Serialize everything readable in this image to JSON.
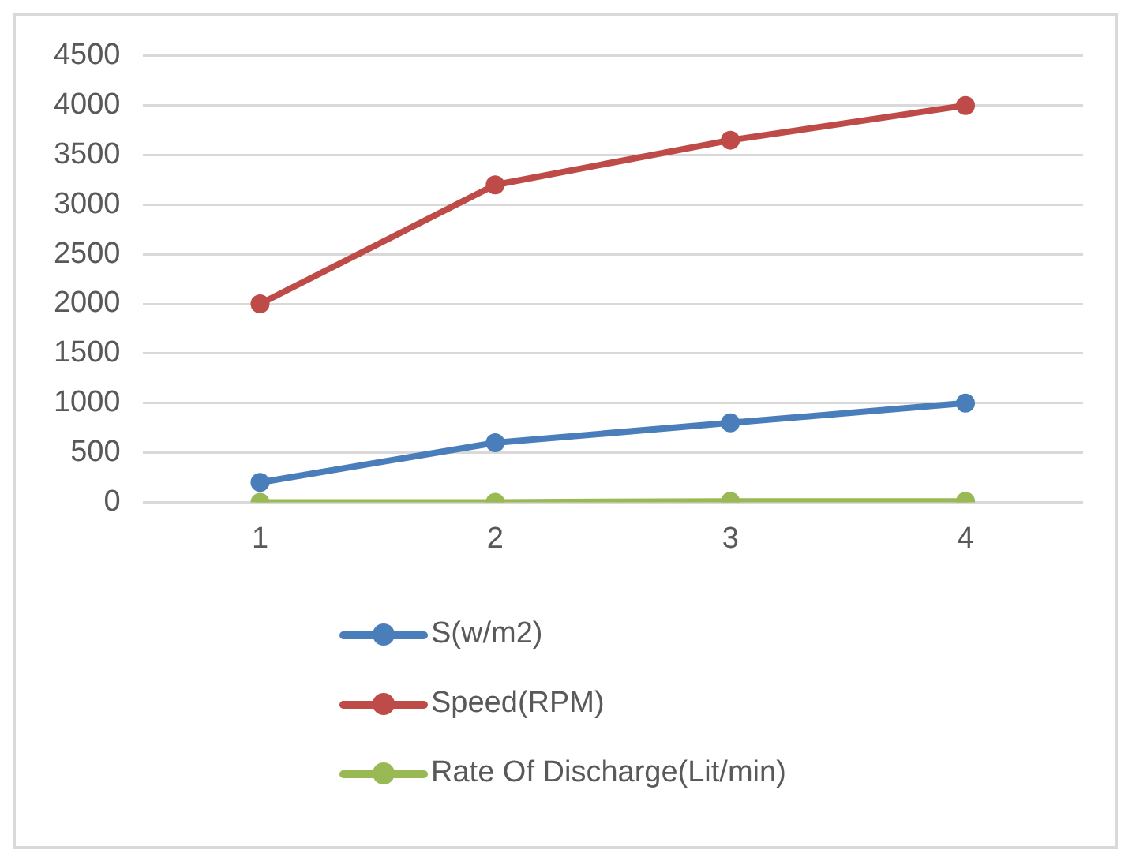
{
  "chart_data": {
    "type": "line",
    "categories": [
      "1",
      "2",
      "3",
      "4"
    ],
    "series": [
      {
        "name": "S(w/m2)",
        "color": "#4a7ebb",
        "values": [
          200,
          600,
          800,
          1000
        ]
      },
      {
        "name": "Speed(RPM)",
        "color": "#be4b48",
        "values": [
          2000,
          3200,
          3650,
          4000
        ]
      },
      {
        "name": "Rate Of Discharge(Lit/min)",
        "color": "#98b954",
        "values": [
          0,
          0,
          10,
          10
        ]
      }
    ],
    "ylim": [
      0,
      4500
    ],
    "yticks": [
      0,
      500,
      1000,
      1500,
      2000,
      2500,
      3000,
      3500,
      4000,
      4500
    ],
    "grid": "y",
    "legend": "bottom",
    "marker": "circle",
    "line_style": "solid"
  }
}
